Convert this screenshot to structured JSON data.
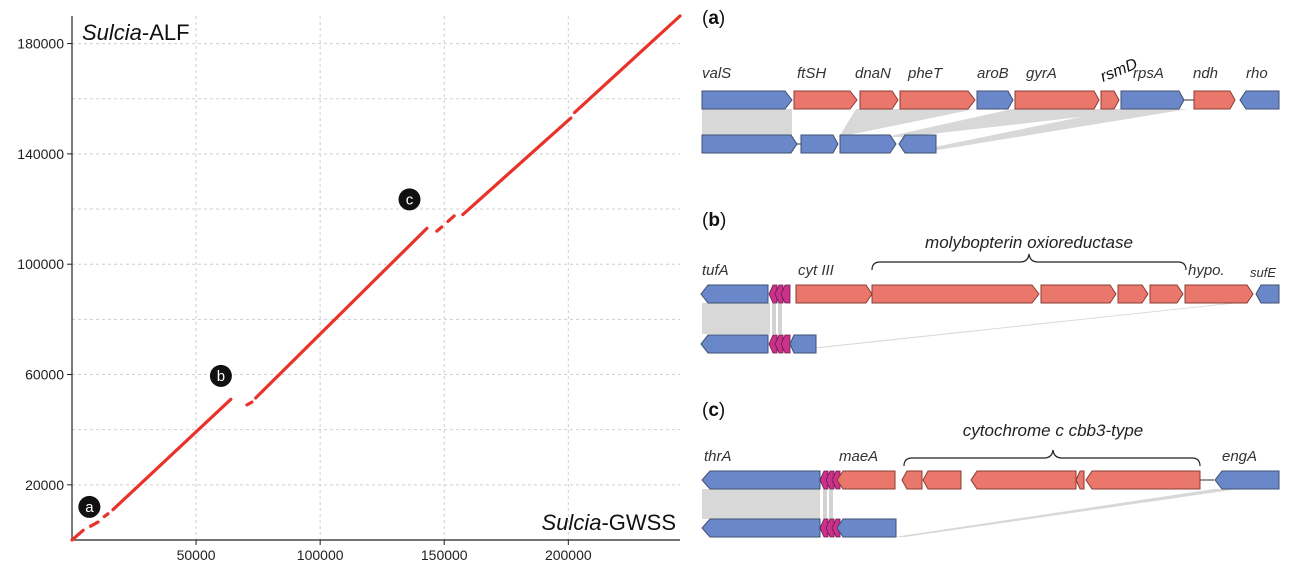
{
  "chart_data": {
    "type": "scatter",
    "ylabel_prefix": "Sulcia",
    "ylabel_suffix": "-ALF",
    "xlabel_prefix": "Sulcia",
    "xlabel_suffix": "-GWSS",
    "xlim": [
      0,
      245000
    ],
    "ylim": [
      0,
      190000
    ],
    "xticks": [
      "50000",
      "100000",
      "150000",
      "200000"
    ],
    "xtick_values": [
      50000,
      100000,
      150000,
      200000
    ],
    "yticks": [
      "20000",
      "60000",
      "100000",
      "140000",
      "180000"
    ],
    "ytick_values": [
      20000,
      60000,
      100000,
      140000,
      180000
    ],
    "grid": true,
    "color": "#e8332a",
    "segments": [
      [
        [
          0,
          0
        ],
        [
          4500,
          3500
        ]
      ],
      [
        [
          7500,
          5000
        ],
        [
          10500,
          6500
        ]
      ],
      [
        [
          13000,
          8500
        ],
        [
          14500,
          9500
        ]
      ],
      [
        [
          16500,
          11000
        ],
        [
          64000,
          51000
        ]
      ],
      [
        [
          70500,
          49000
        ],
        [
          72500,
          50000
        ]
      ],
      [
        [
          74000,
          51500
        ],
        [
          143000,
          113000
        ]
      ],
      [
        [
          147000,
          112000
        ],
        [
          149000,
          113500
        ]
      ],
      [
        [
          151500,
          115500
        ],
        [
          154000,
          117500
        ]
      ],
      [
        [
          157500,
          118000
        ],
        [
          201000,
          153000
        ]
      ],
      [
        [
          202500,
          155000
        ],
        [
          245000,
          190000
        ]
      ]
    ],
    "markers": [
      {
        "label": "a",
        "x": 7000,
        "y": 12000
      },
      {
        "label": "b",
        "x": 60000,
        "y": 59500
      },
      {
        "label": "c",
        "x": 136000,
        "y": 123500
      }
    ]
  },
  "panels": {
    "a": {
      "letter": "a",
      "genes": [
        "valS",
        "ftSH",
        "dnaN",
        "pheT",
        "aroB",
        "gyrA",
        "rsmD",
        "rpsA",
        "ndh",
        "rho"
      ]
    },
    "b": {
      "letter": "b",
      "genes": [
        "tufA",
        "cyt III",
        "hypo.",
        "sufE"
      ],
      "group": "molybopterin oxioreductase"
    },
    "c": {
      "letter": "c",
      "genes": [
        "thrA",
        "maeA",
        "engA"
      ],
      "group": "cytochrome c cbb3-type"
    }
  },
  "colors": {
    "blue": "#6a88c9",
    "red": "#ea776c",
    "magenta": "#c9318b",
    "shade": "#d8d8d8",
    "grid": "#cfcfcf"
  }
}
